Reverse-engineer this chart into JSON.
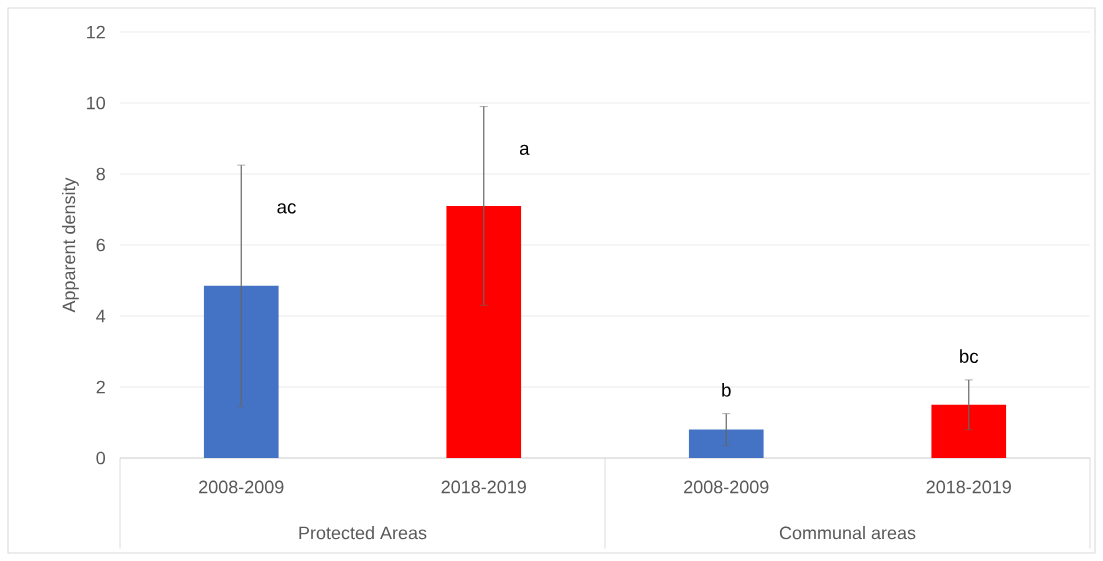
{
  "chart_data": {
    "type": "bar",
    "ylabel": "Apparent density",
    "categories": [
      "2008-2009",
      "2018-2019",
      "2008-2009",
      "2018-2019"
    ],
    "values": [
      4.85,
      7.1,
      0.8,
      1.5
    ],
    "errors": [
      3.4,
      2.8,
      0.45,
      0.7
    ],
    "colors": [
      "#4472c4",
      "#ff0000",
      "#4472c4",
      "#ff0000"
    ],
    "ylim": [
      0,
      12
    ],
    "yticks": [
      0,
      2,
      4,
      6,
      8,
      10,
      12
    ],
    "grid": "y",
    "annotations": [
      "ac",
      "a",
      "b",
      "bc",
      "Protected Areas",
      "Communal areas"
    ]
  }
}
